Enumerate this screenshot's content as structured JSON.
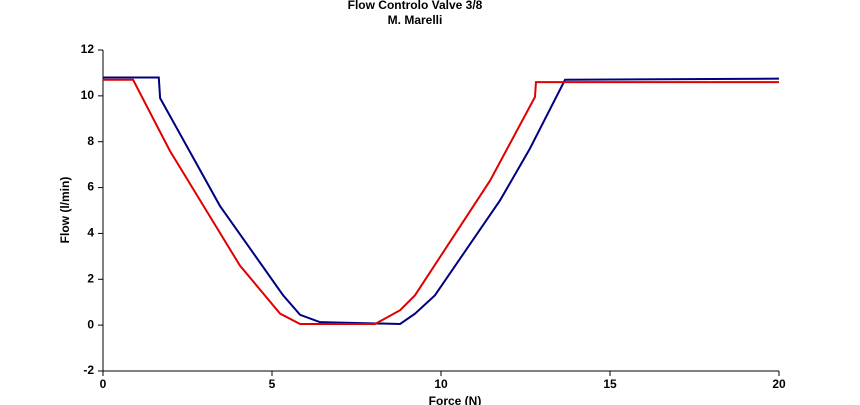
{
  "chart_data": {
    "type": "line",
    "title": "Flow Controlo Valve 3/8",
    "subtitle": "M. Marelli",
    "x_label": "Force (N)",
    "y_label": "Flow (l/min)",
    "xlim": [
      0,
      20
    ],
    "xticks": [
      0,
      5,
      10,
      15,
      20
    ],
    "ylim": [
      -2,
      12
    ],
    "yticks": [
      -2,
      0,
      2,
      4,
      6,
      8,
      10,
      12
    ],
    "grid": false,
    "series": [
      {
        "color": "#000080",
        "x": [
          0,
          1.65,
          1.69,
          3.46,
          5.33,
          5.83,
          6.42,
          8.79,
          9.23,
          9.82,
          11.75,
          12.63,
          13.67,
          20
        ],
        "values": [
          10.8,
          10.8,
          9.9,
          5.2,
          1.3,
          0.45,
          0.13,
          0.05,
          0.5,
          1.3,
          5.45,
          7.7,
          10.7,
          10.75
        ]
      },
      {
        "color": "#e00000",
        "x": [
          0,
          0.89,
          1.98,
          4.05,
          5.24,
          5.83,
          8.05,
          8.79,
          9.23,
          11.45,
          12.78,
          12.81,
          20
        ],
        "values": [
          10.7,
          10.7,
          7.6,
          2.6,
          0.5,
          0.05,
          0.05,
          0.65,
          1.3,
          6.3,
          9.95,
          10.6,
          10.6
        ]
      }
    ]
  }
}
